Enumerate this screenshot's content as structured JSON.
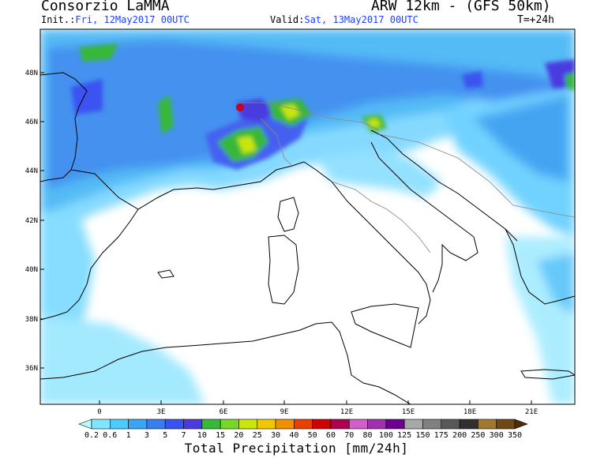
{
  "header": {
    "title": "Consorzio LaMMA",
    "model": "ARW 12km - (GFS 50km)",
    "init_label": "Init.:",
    "init_value": "Fri, 12May2017 00UTC",
    "valid_label": "Valid:",
    "valid_value": "Sat, 13May2017 00UTC",
    "lead": "T=+24h"
  },
  "map": {
    "lat_labels": [
      "48N",
      "46N",
      "44N",
      "42N",
      "40N",
      "38N",
      "36N"
    ],
    "lon_labels": [
      "0",
      "3E",
      "6E",
      "9E",
      "12E",
      "15E",
      "18E",
      "21E"
    ],
    "land_color": "#ffffff",
    "coast_color": "#000000",
    "border_color": "#888888"
  },
  "colorbar": {
    "labels": [
      "0.2",
      "0.6",
      "1",
      "3",
      "5",
      "7",
      "10",
      "15",
      "20",
      "25",
      "30",
      "40",
      "50",
      "60",
      "70",
      "80",
      "100",
      "125",
      "150",
      "175",
      "200",
      "250",
      "300",
      "350"
    ],
    "colors": [
      "#b8f8ff",
      "#80e6ff",
      "#4ccbff",
      "#3aa6f3",
      "#3a7df0",
      "#3a53f0",
      "#4a3ae0",
      "#38b838",
      "#78d628",
      "#c8e60a",
      "#f0c800",
      "#f09000",
      "#e84000",
      "#d00000",
      "#b00050",
      "#d060c8",
      "#a030b0",
      "#700090",
      "#a8a8a8",
      "#808080",
      "#585858",
      "#303030",
      "#a07830",
      "#704818",
      "#4a2e08"
    ],
    "units": "Total Precipitation [mm/24h]"
  }
}
